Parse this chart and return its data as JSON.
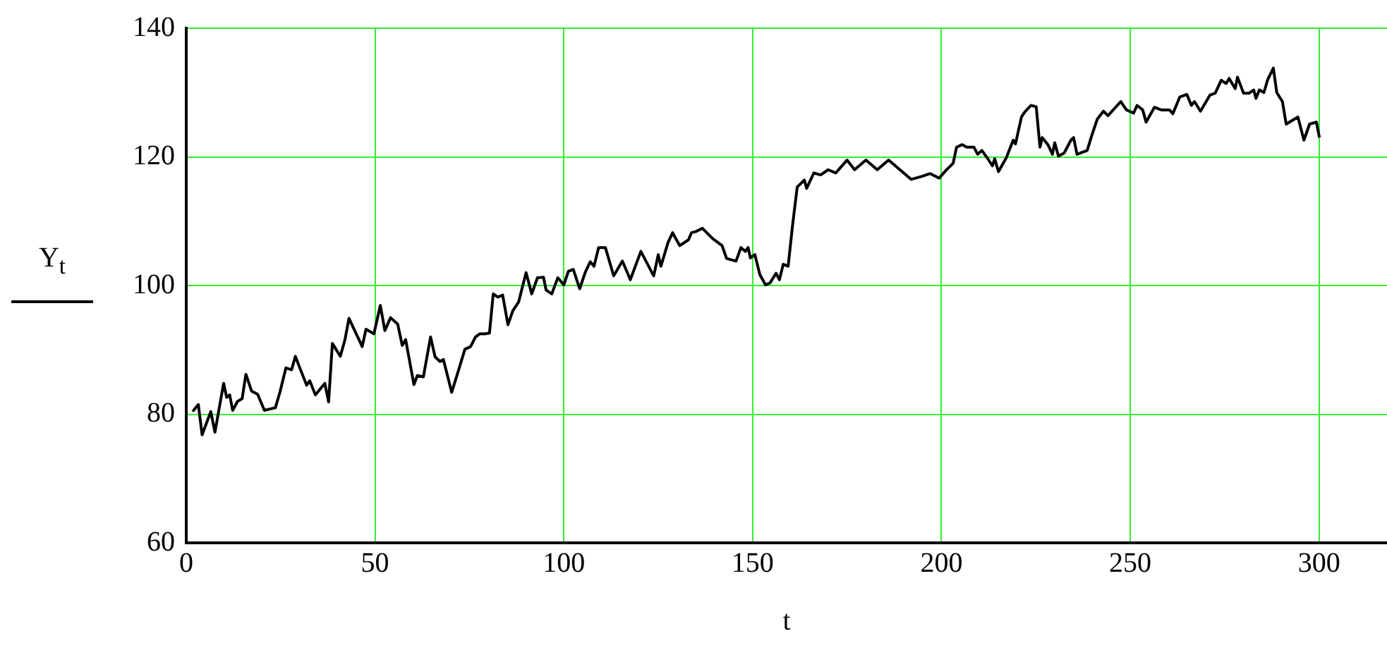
{
  "chart_data": {
    "type": "line",
    "xlabel": "t",
    "ylabel": "Y$_{t}$",
    "xlim": [
      0,
      318
    ],
    "ylim": [
      60,
      140
    ],
    "xticks": [
      0,
      50,
      100,
      150,
      200,
      250,
      300
    ],
    "yticks": [
      60,
      80,
      100,
      120,
      140
    ],
    "grid": true,
    "legend": false,
    "marker": "none",
    "line_style": "solid",
    "series": [
      {
        "color": "#000000",
        "x": [
          1.7,
          3.2,
          4.2,
          6.5,
          7.6,
          9.9,
          10.7,
          11.5,
          12.3,
          13.6,
          14.8,
          15.8,
          17.3,
          18.9,
          20.7,
          23.6,
          24.8,
          26.4,
          27.9,
          28.9,
          30.2,
          31.9,
          32.7,
          34.2,
          36.7,
          37.7,
          38.7,
          40.8,
          42,
          43.1,
          46.6,
          47.6,
          49.7,
          51.4,
          52.6,
          54.1,
          56,
          57.2,
          58.1,
          60.3,
          61.2,
          62.8,
          64.7,
          65.9,
          67.2,
          68.1,
          70.3,
          72.2,
          73.8,
          75.3,
          76.6,
          77.8,
          79.1,
          80.3,
          81.3,
          82.5,
          83.8,
          85.2,
          86.5,
          88,
          90,
          91.5,
          93,
          94.6,
          95.3,
          96.8,
          98.4,
          100,
          101.2,
          102.5,
          104.2,
          105.7,
          107,
          108,
          109.2,
          111,
          113.2,
          115.5,
          117.6,
          120.4,
          123.8,
          125,
          125.7,
          127.6,
          128.8,
          130.7,
          133,
          133.8,
          135,
          136.7,
          139.4,
          141.9,
          143.1,
          145.6,
          146.9,
          148.1,
          148.8,
          149.4,
          150.6,
          151.9,
          153.4,
          154.6,
          156.2,
          157.1,
          158.1,
          159.4,
          160.6,
          161.8,
          163.7,
          164.3,
          166.2,
          168,
          170,
          172,
          175,
          177,
          180,
          183,
          186,
          189,
          192,
          195,
          197,
          199.4,
          201.2,
          203.1,
          204,
          205.5,
          206.7,
          208.6,
          209.6,
          210.7,
          212.3,
          213.5,
          214.1,
          215.1,
          217.2,
          219,
          219.6,
          221.2,
          222.1,
          223.7,
          225.1,
          226.1,
          226.7,
          228.2,
          229.4,
          230,
          231,
          232.5,
          234.3,
          235,
          235.9,
          238.6,
          239.8,
          241.3,
          242.9,
          244.1,
          247.5,
          249,
          250.9,
          251.8,
          253.3,
          254.2,
          256.4,
          258.2,
          260.4,
          261.3,
          263.1,
          265,
          266.2,
          267,
          268.6,
          271.1,
          272.5,
          274.1,
          275.4,
          276.2,
          277.8,
          278.4,
          280,
          281.5,
          282.7,
          283.3,
          284.2,
          285.4,
          286.4,
          287.9,
          288.8,
          290.3,
          291.3,
          294.4,
          296,
          297.5,
          299.3,
          300.1
        ],
        "values": [
          80.4,
          81.5,
          76.8,
          80.4,
          77.2,
          84.8,
          82.6,
          83,
          80.6,
          82,
          82.4,
          86.2,
          83.6,
          83.1,
          80.6,
          81,
          83.4,
          87.2,
          86.9,
          89,
          87,
          84.5,
          85.2,
          83,
          84.8,
          81.9,
          91,
          89,
          91.5,
          94.9,
          90.5,
          93.2,
          92.5,
          96.9,
          93,
          95,
          94,
          90.7,
          91.6,
          84.6,
          86,
          85.8,
          92,
          88.9,
          88.2,
          88.5,
          83.4,
          87,
          90.1,
          90.5,
          92,
          92.5,
          92.5,
          92.6,
          98.7,
          98.2,
          98.5,
          93.9,
          96.1,
          97.4,
          102,
          98.7,
          101.2,
          101.3,
          99.3,
          98.7,
          101.2,
          100.1,
          102.2,
          102.5,
          99.5,
          102.1,
          103.7,
          103,
          105.9,
          105.9,
          101.5,
          103.8,
          100.9,
          105.3,
          101.5,
          104.8,
          103,
          106.7,
          108.2,
          106.2,
          107.1,
          108.2,
          108.4,
          108.9,
          107.3,
          106.2,
          104.2,
          103.8,
          105.9,
          105.3,
          105.9,
          104.3,
          104.8,
          101.7,
          100.1,
          100.4,
          101.9,
          100.9,
          103.3,
          103,
          109.5,
          115.3,
          116.4,
          115.1,
          117.5,
          117.2,
          118,
          117.5,
          119.5,
          118,
          119.5,
          118,
          119.5,
          118,
          116.5,
          117,
          117.4,
          116.7,
          117.9,
          119,
          121.5,
          121.9,
          121.5,
          121.5,
          120.4,
          121,
          119.7,
          118.6,
          119.7,
          117.7,
          119.9,
          122.6,
          122,
          126.2,
          127,
          128,
          127.8,
          121.5,
          123,
          121.9,
          120.4,
          122.2,
          120.1,
          120.6,
          122.6,
          123,
          120.4,
          121,
          123.3,
          125.9,
          127.1,
          126.4,
          128.6,
          127.3,
          126.8,
          128,
          127.3,
          125.4,
          127.7,
          127.3,
          127.3,
          126.7,
          129.3,
          129.7,
          128,
          128.6,
          127.1,
          129.6,
          129.9,
          131.9,
          131.4,
          132.2,
          130.6,
          132.4,
          129.9,
          129.9,
          130.4,
          129.1,
          130.4,
          130,
          132,
          133.8,
          130,
          128.6,
          125.1,
          126.2,
          122.6,
          125.1,
          125.4,
          123
        ]
      }
    ]
  }
}
